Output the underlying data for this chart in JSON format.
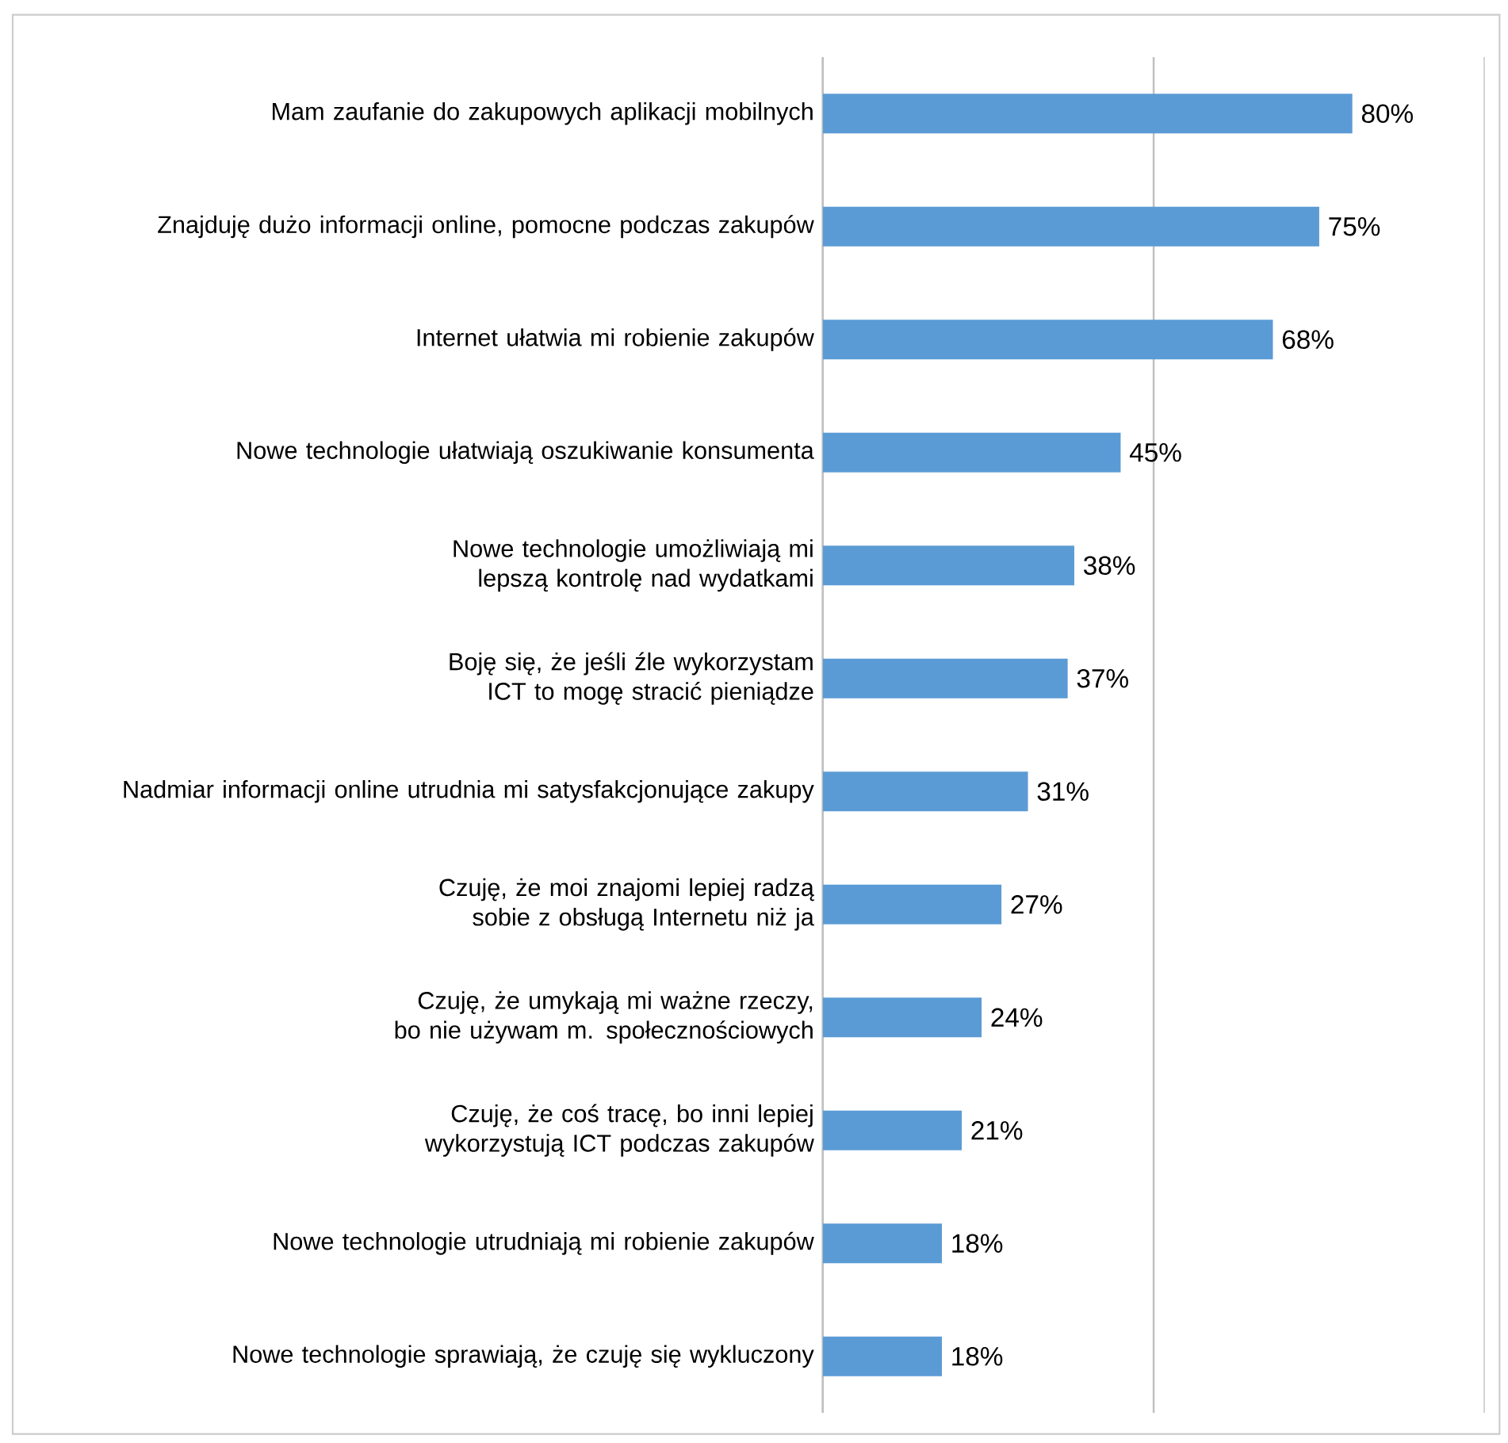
{
  "chart_data": {
    "type": "bar",
    "orientation": "horizontal",
    "categories": [
      "Mam zaufanie do zakupowych aplikacji mobilnych",
      "Znajduję dużo informacji online, pomocne podczas zakupów",
      "Internet ułatwia mi robienie zakupów",
      "Nowe technologie ułatwiają oszukiwanie konsumenta",
      "Nowe technologie umożliwiają mi lepszą kontrolę nad wydatkami",
      "Boję się, że jeśli źle wykorzystam ICT to mogę stracić pieniądze",
      "Nadmiar informacji online utrudnia mi satysfakcjonujące zakupy",
      "Czuję, że moi znajomi lepiej radzą sobie z obsługą Internetu niż ja",
      "Czuję, że umykają mi ważne rzeczy, bo nie używam m. społecznościowych",
      "Czuję, że coś tracę, bo inni lepiej wykorzystują ICT podczas zakupów",
      "Nowe technologie utrudniają mi robienie zakupów",
      "Nowe technologie sprawiają, że czuję się wykluczony"
    ],
    "values": [
      80,
      75,
      68,
      45,
      38,
      37,
      31,
      27,
      24,
      21,
      18,
      18
    ],
    "value_labels": [
      "80%",
      "75%",
      "68%",
      "45%",
      "38%",
      "37%",
      "31%",
      "27%",
      "24%",
      "21%",
      "18%",
      "18%"
    ],
    "color": "#5b9bd5",
    "xlim": [
      0,
      100
    ],
    "ref_lines": [
      {
        "axis": "x",
        "value": 50,
        "color": "#bfbfbf"
      },
      {
        "axis": "x",
        "value": 100,
        "color": "#bfbfbf"
      }
    ],
    "tick_labels": "y"
  }
}
